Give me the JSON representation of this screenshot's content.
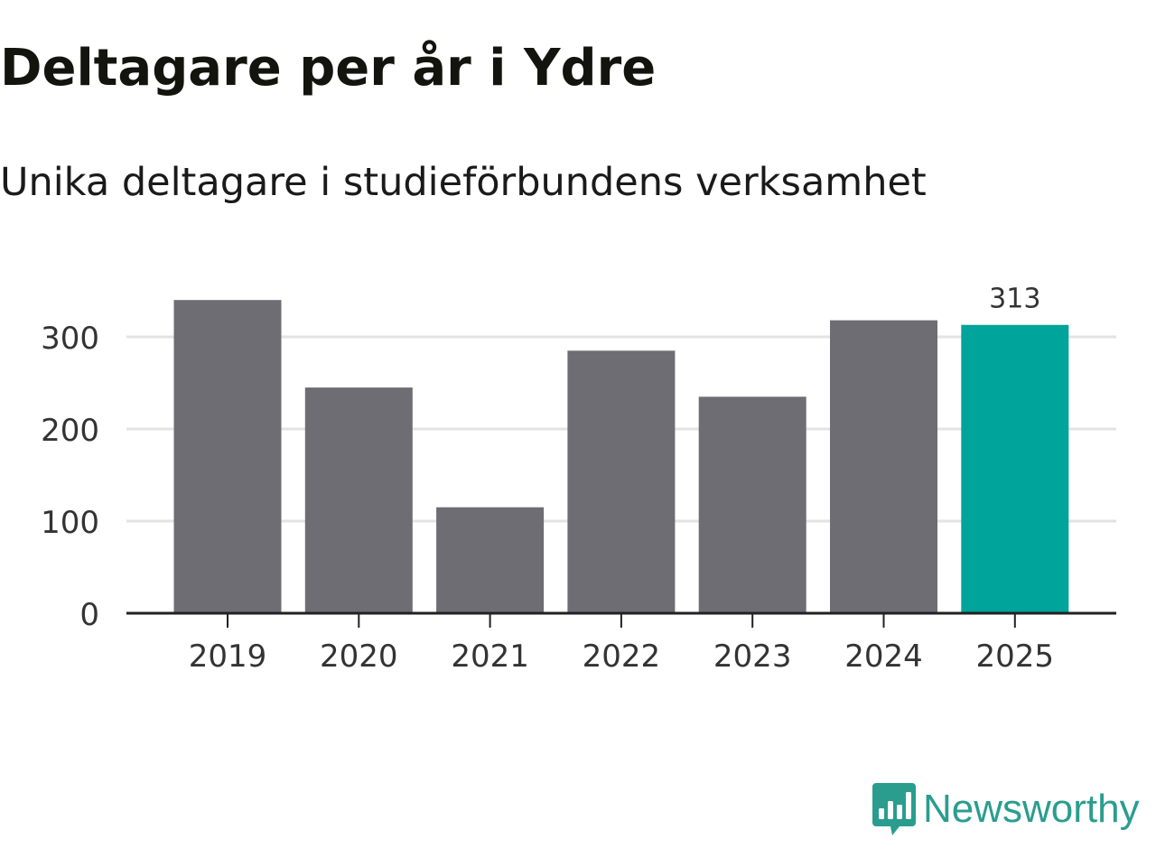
{
  "colors": {
    "bar": "#6e6d73",
    "highlight": "#00a49a",
    "grid": "#e3e3e3",
    "axis": "#222222",
    "brand": "#2a9d8f"
  },
  "chart_data": {
    "type": "bar",
    "title": "Deltagare per år i Ydre",
    "subtitle": "Unika deltagare i studieförbundens verksamhet",
    "categories": [
      "2019",
      "2020",
      "2021",
      "2022",
      "2023",
      "2024",
      "2025"
    ],
    "values": [
      340,
      245,
      115,
      285,
      235,
      318,
      313
    ],
    "highlight_index": 6,
    "data_labels": [
      null,
      null,
      null,
      null,
      null,
      null,
      "313"
    ],
    "yticks": [
      0,
      100,
      200,
      300
    ],
    "ylim": [
      0,
      360
    ],
    "xlabel": "",
    "ylabel": "",
    "grid": true
  },
  "branding": {
    "logo_text": "Newsworthy",
    "logo_icon": "newsworthy-chart-icon"
  }
}
